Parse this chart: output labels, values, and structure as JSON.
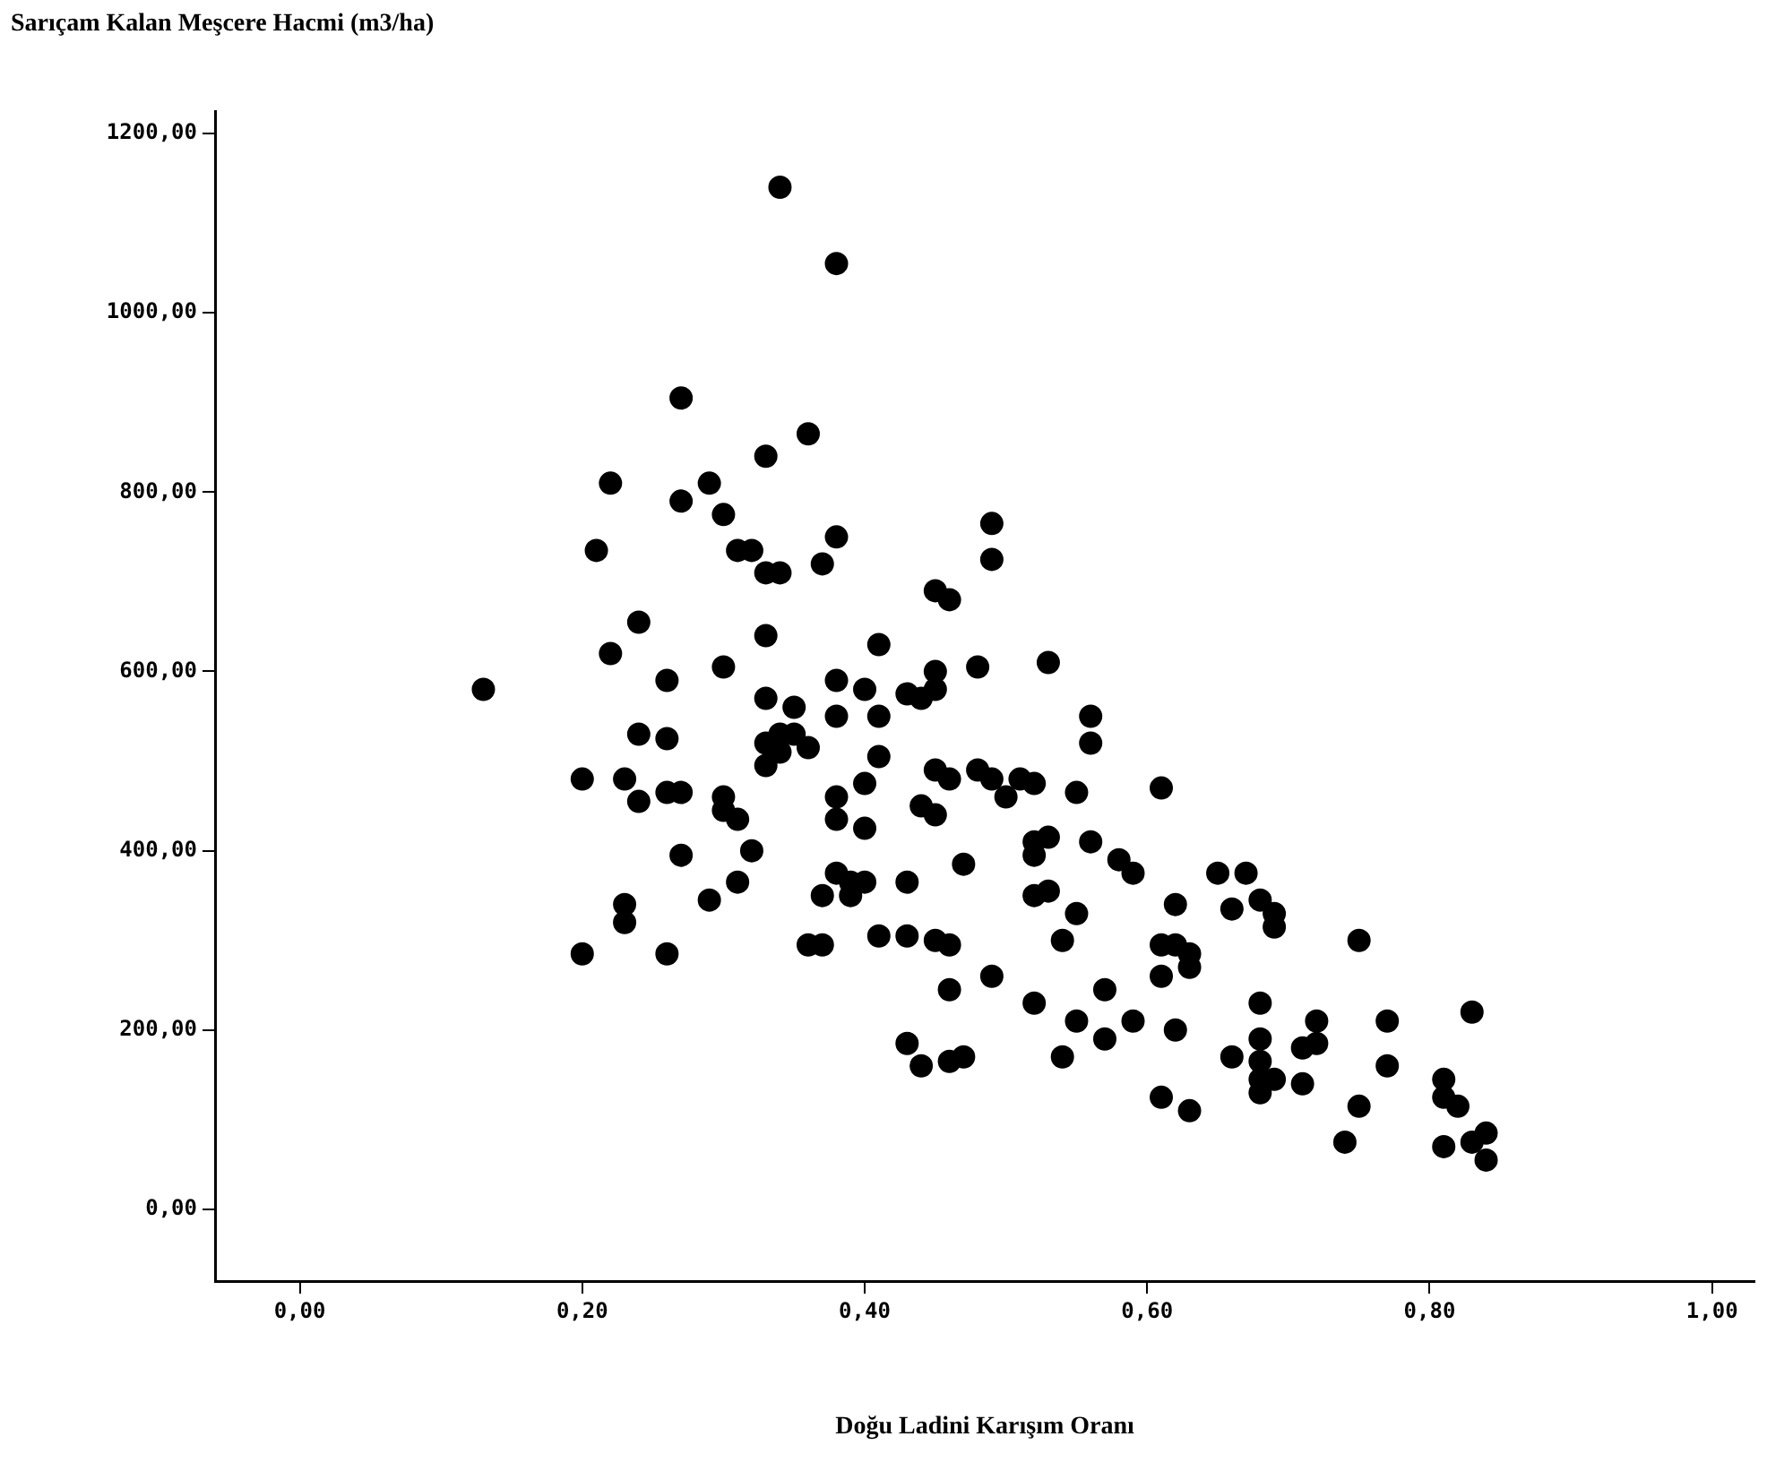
{
  "chart_data": {
    "type": "scatter",
    "ylabel": "Sarıçam Kalan Meşcere Hacmi (m3/ha)",
    "xlabel": "Doğu Ladini Karışım Oranı",
    "marker": "circle",
    "grid": false,
    "xlim": [
      -0.06,
      1.03
    ],
    "ylim": [
      -80,
      1225
    ],
    "xticks": [
      {
        "value": 0,
        "label": "0,00"
      },
      {
        "value": 0.2,
        "label": "0,20"
      },
      {
        "value": 0.4,
        "label": "0,40"
      },
      {
        "value": 0.6,
        "label": "0,60"
      },
      {
        "value": 0.8,
        "label": "0,80"
      },
      {
        "value": 1,
        "label": "1,00"
      }
    ],
    "yticks": [
      {
        "value": 0,
        "label": "0,00"
      },
      {
        "value": 200,
        "label": "200,00"
      },
      {
        "value": 400,
        "label": "400,00"
      },
      {
        "value": 600,
        "label": "600,00"
      },
      {
        "value": 800,
        "label": "800,00"
      },
      {
        "value": 1000,
        "label": "1000,00"
      },
      {
        "value": 1200,
        "label": "1200,00"
      }
    ],
    "series": [
      {
        "color": "#000000",
        "x": [
          0.13,
          0.2,
          0.2,
          0.21,
          0.22,
          0.22,
          0.23,
          0.23,
          0.23,
          0.24,
          0.24,
          0.24,
          0.26,
          0.26,
          0.26,
          0.26,
          0.27,
          0.27,
          0.27,
          0.27,
          0.29,
          0.29,
          0.3,
          0.3,
          0.3,
          0.3,
          0.31,
          0.31,
          0.31,
          0.32,
          0.32,
          0.33,
          0.33,
          0.33,
          0.33,
          0.33,
          0.33,
          0.34,
          0.34,
          0.34,
          0.34,
          0.35,
          0.35,
          0.36,
          0.36,
          0.36,
          0.37,
          0.37,
          0.37,
          0.38,
          0.38,
          0.38,
          0.38,
          0.38,
          0.38,
          0.38,
          0.39,
          0.39,
          0.4,
          0.4,
          0.4,
          0.4,
          0.41,
          0.41,
          0.41,
          0.41,
          0.43,
          0.43,
          0.43,
          0.43,
          0.44,
          0.44,
          0.44,
          0.45,
          0.45,
          0.45,
          0.45,
          0.45,
          0.45,
          0.46,
          0.46,
          0.46,
          0.46,
          0.46,
          0.47,
          0.47,
          0.48,
          0.48,
          0.49,
          0.49,
          0.49,
          0.49,
          0.5,
          0.51,
          0.52,
          0.52,
          0.52,
          0.52,
          0.52,
          0.53,
          0.53,
          0.53,
          0.54,
          0.54,
          0.55,
          0.55,
          0.55,
          0.56,
          0.56,
          0.56,
          0.57,
          0.57,
          0.58,
          0.59,
          0.59,
          0.61,
          0.61,
          0.61,
          0.61,
          0.62,
          0.62,
          0.62,
          0.63,
          0.63,
          0.63,
          0.65,
          0.66,
          0.66,
          0.67,
          0.68,
          0.68,
          0.68,
          0.68,
          0.68,
          0.68,
          0.69,
          0.69,
          0.69,
          0.71,
          0.71,
          0.72,
          0.72,
          0.74,
          0.75,
          0.75,
          0.77,
          0.77,
          0.81,
          0.81,
          0.81,
          0.82,
          0.83,
          0.83,
          0.84,
          0.84
        ],
        "values": [
          580,
          480,
          285,
          735,
          810,
          620,
          480,
          340,
          320,
          655,
          530,
          455,
          590,
          525,
          465,
          285,
          905,
          790,
          465,
          395,
          810,
          345,
          775,
          605,
          460,
          445,
          735,
          435,
          365,
          735,
          400,
          840,
          710,
          640,
          570,
          520,
          495,
          1140,
          710,
          530,
          510,
          560,
          530,
          865,
          515,
          295,
          720,
          350,
          295,
          1055,
          750,
          590,
          550,
          460,
          435,
          375,
          365,
          350,
          580,
          475,
          425,
          365,
          630,
          550,
          505,
          305,
          575,
          365,
          305,
          185,
          570,
          450,
          160,
          690,
          600,
          580,
          490,
          440,
          300,
          680,
          480,
          295,
          245,
          165,
          385,
          170,
          605,
          490,
          765,
          725,
          480,
          260,
          460,
          480,
          475,
          410,
          395,
          350,
          230,
          610,
          415,
          355,
          300,
          170,
          465,
          330,
          210,
          550,
          520,
          410,
          245,
          190,
          390,
          375,
          210,
          470,
          295,
          260,
          125,
          340,
          295,
          200,
          285,
          270,
          110,
          375,
          335,
          170,
          375,
          345,
          230,
          190,
          165,
          145,
          130,
          330,
          315,
          145,
          180,
          140,
          210,
          185,
          75,
          300,
          115,
          210,
          160,
          145,
          125,
          70,
          115,
          220,
          75,
          85,
          55
        ]
      }
    ]
  }
}
